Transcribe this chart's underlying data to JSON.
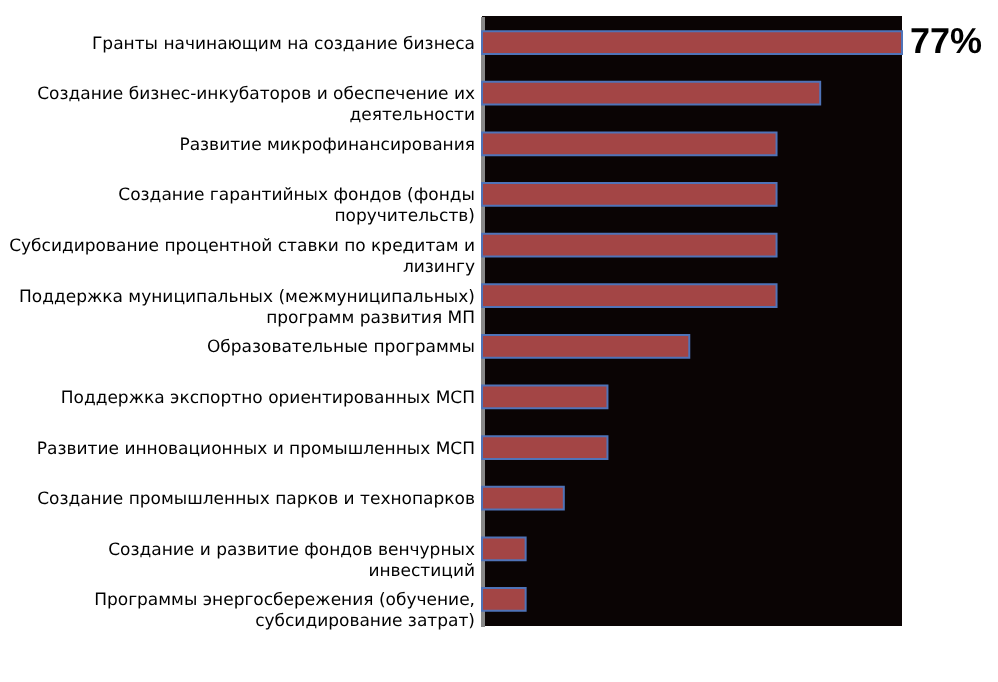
{
  "chart_data": {
    "type": "bar",
    "orientation": "horizontal",
    "xlim": [
      0,
      77
    ],
    "tick_labels": "y",
    "color": "#a34545",
    "categories": [
      "Гранты начинающим на создание бизнеса",
      "Создание бизнес-инкубаторов и обеспечение их деятельности",
      "Развитие микрофинансирования",
      "Создание гарантийных фондов (фонды поручительств)",
      "Субсидирование процентной ставки по кредитам и лизингу",
      "Поддержка муниципальных (межмуниципальных) программ развития МП",
      "Образовательные программы",
      "Поддержка экспортно ориентированных МСП",
      "Развитие инновационных и промышленных МСП",
      "Создание промышленных парков и технопарков",
      "Создание и развитие фондов венчурных инвестиций",
      "Программы энергосбережения (обучение, субсидирование затрат)"
    ],
    "values": [
      77,
      62,
      54,
      54,
      54,
      54,
      38,
      23,
      23,
      15,
      8,
      8
    ],
    "value_labels": [
      "77%",
      null,
      null,
      null,
      null,
      null,
      null,
      null,
      null,
      null,
      null,
      null
    ]
  }
}
